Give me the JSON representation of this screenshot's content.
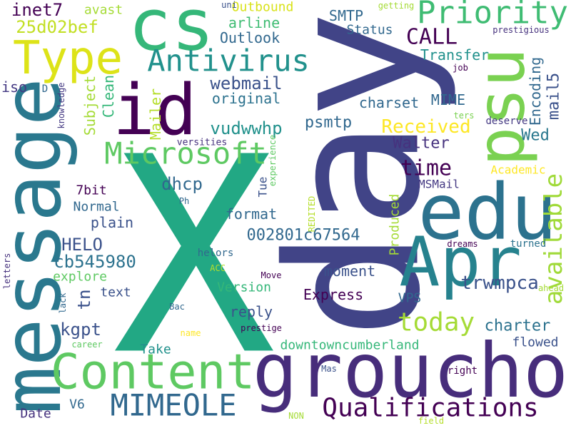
{
  "words": [
    "X",
    "day",
    "groucho",
    "message",
    "Apr",
    "edu",
    "psu",
    "cs",
    "id",
    "Content",
    "Type",
    "Priority",
    "Antivirus",
    "Microsoft",
    "MIMEOLE",
    "Qualifications",
    "today",
    "available",
    "CALL",
    "time",
    "Received",
    "Walter",
    "Wed",
    "Encoding",
    "mail5",
    "MIME",
    "Transfer",
    "Status",
    "SMTP",
    "Outbound",
    "arline",
    "Outlook",
    "inet7",
    "25d02bef",
    "avast",
    "uni",
    "getting",
    "prestigious",
    "job",
    "webmail",
    "original",
    "vudwwhp",
    "psmtp",
    "charset",
    "iso",
    "D",
    "knowledge",
    "Subject",
    "Clean",
    "Mailer",
    "dhcp",
    "versities",
    "experience",
    "7bit",
    "Normal",
    "plain",
    "HELO",
    "cb545980",
    "explore",
    "text",
    "tn",
    "kgpt",
    "Take",
    "Date",
    "V6",
    "Ph",
    "Tue",
    "format",
    "002801c67564",
    "REDITED",
    "Produced",
    "MSMail",
    "Academic",
    "ters",
    "deserve",
    "Version",
    "moment",
    "Express",
    "VPS",
    "trwmpca",
    "ahead",
    "dreams",
    "turned",
    "helors",
    "ACC",
    "Move",
    "reply",
    "charter",
    "flowed",
    "downtowncumberland",
    "prestige",
    "Bac",
    "name",
    "career",
    "lack",
    "letters",
    "Mas",
    "right",
    "NON",
    "field"
  ]
}
